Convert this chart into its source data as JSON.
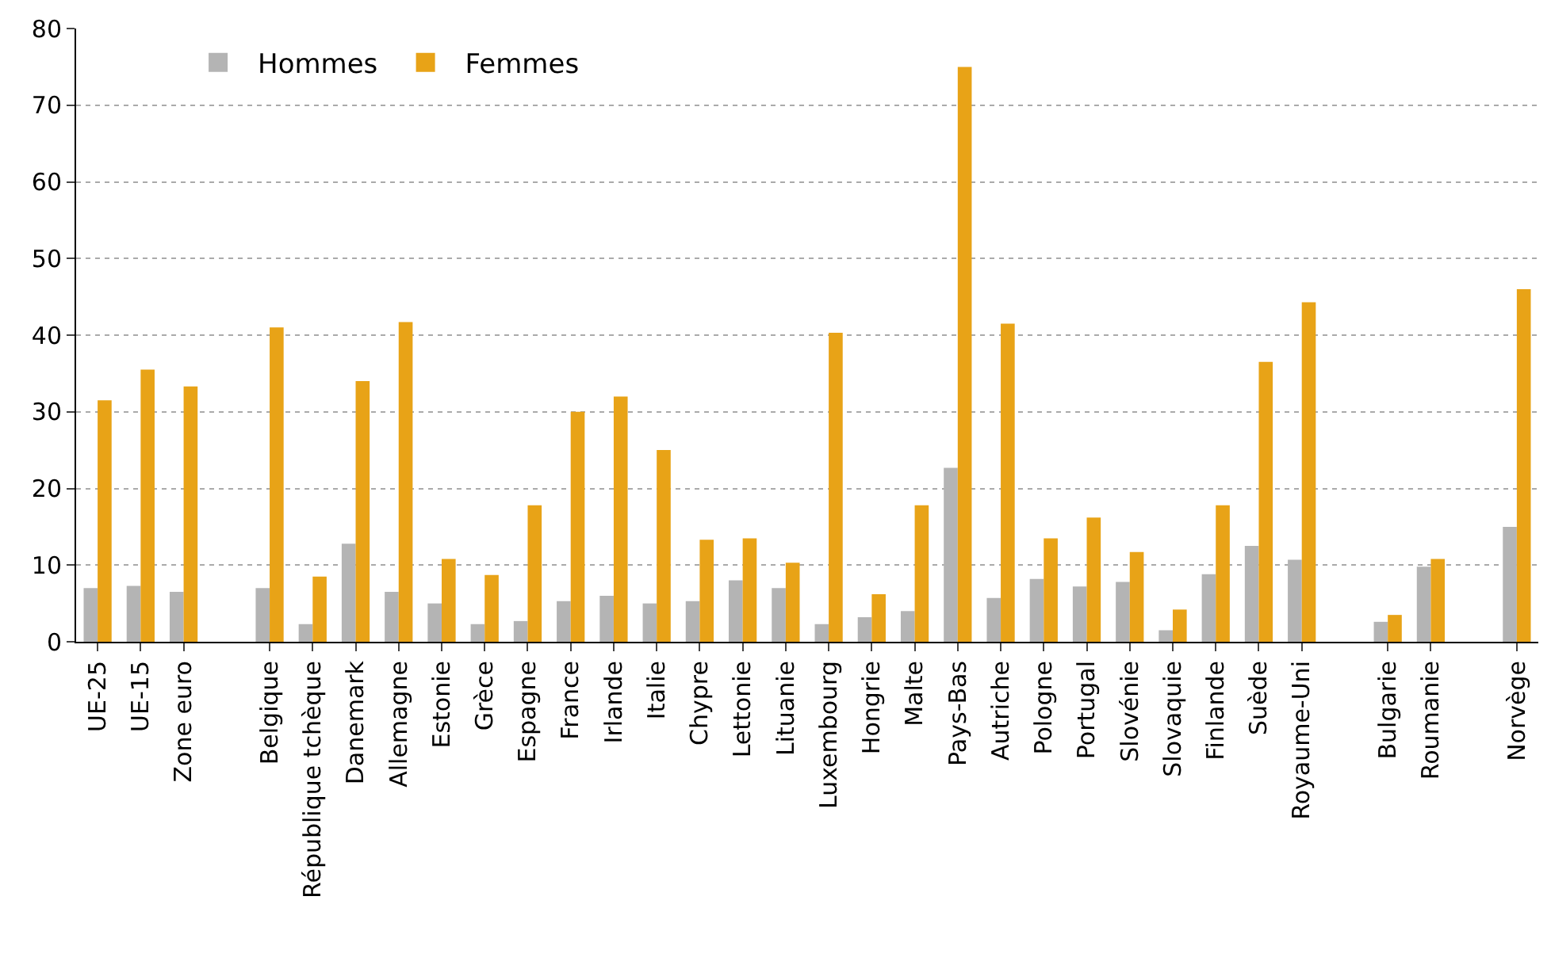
{
  "chart_data": {
    "type": "bar",
    "categories": [
      "UE-25",
      "UE-15",
      "Zone euro",
      null,
      "Belgique",
      "République tchèque",
      "Danemark",
      "Allemagne",
      "Estonie",
      "Grèce",
      "Espagne",
      "France",
      "Irlande",
      "Italie",
      "Chypre",
      "Lettonie",
      "Lituanie",
      "Luxembourg",
      "Hongrie",
      "Malte",
      "Pays-Bas",
      "Autriche",
      "Pologne",
      "Portugal",
      "Slovénie",
      "Slovaquie",
      "Finlande",
      "Suède",
      "Royaume-Uni",
      null,
      "Bulgarie",
      "Roumanie",
      null,
      "Norvège"
    ],
    "series": [
      {
        "name": "Hommes",
        "color": "#b4b4b4",
        "values": [
          7,
          7.3,
          6.5,
          null,
          7,
          2.3,
          12.8,
          6.5,
          5,
          2.3,
          2.7,
          5.3,
          6,
          5,
          5.3,
          8,
          7,
          2.3,
          3.2,
          4,
          22.7,
          5.7,
          8.2,
          7.2,
          7.8,
          1.5,
          8.8,
          12.5,
          10.7,
          null,
          2.6,
          9.8,
          null,
          15
        ]
      },
      {
        "name": "Femmes",
        "color": "#e8a317",
        "values": [
          31.5,
          35.5,
          33.3,
          null,
          41,
          8.5,
          34,
          41.7,
          10.8,
          8.7,
          17.8,
          30,
          32,
          25,
          13.3,
          13.5,
          10.3,
          40.3,
          6.2,
          17.8,
          75,
          41.5,
          13.5,
          16.2,
          11.7,
          4.2,
          17.8,
          36.5,
          44.3,
          null,
          3.5,
          10.8,
          null,
          46
        ]
      }
    ],
    "ylim": [
      0,
      80
    ],
    "yticks": [
      0,
      10,
      20,
      30,
      40,
      50,
      60,
      70,
      80
    ],
    "grid": "y",
    "legend": "top left"
  }
}
